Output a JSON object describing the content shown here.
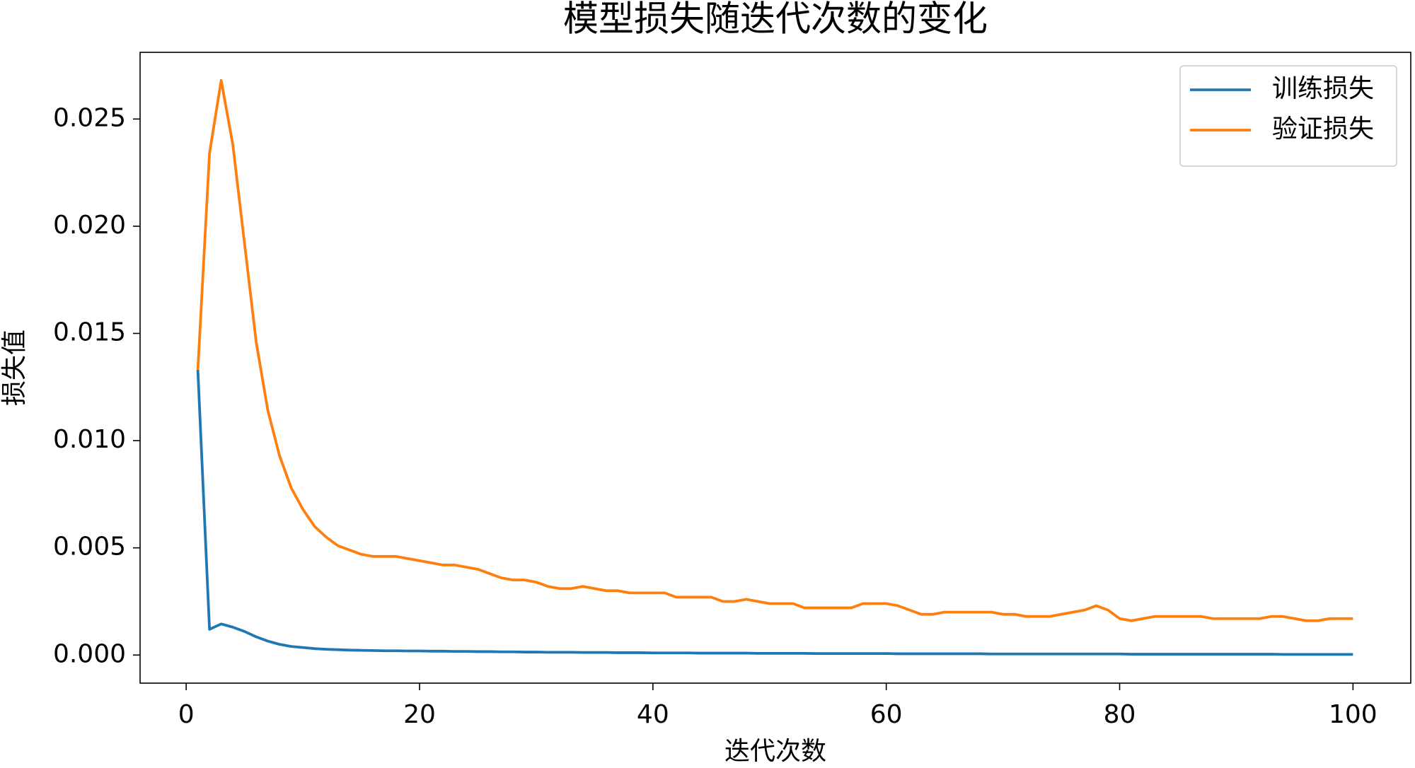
{
  "chart_data": {
    "type": "line",
    "title": "模型损失随迭代次数的变化",
    "x_label": "迭代次数",
    "y_label": "损失值",
    "x": [
      1,
      2,
      3,
      4,
      5,
      6,
      7,
      8,
      9,
      10,
      11,
      12,
      13,
      14,
      15,
      16,
      17,
      18,
      19,
      20,
      21,
      22,
      23,
      24,
      25,
      26,
      27,
      28,
      29,
      30,
      31,
      32,
      33,
      34,
      35,
      36,
      37,
      38,
      39,
      40,
      41,
      42,
      43,
      44,
      45,
      46,
      47,
      48,
      49,
      50,
      51,
      52,
      53,
      54,
      55,
      56,
      57,
      58,
      59,
      60,
      61,
      62,
      63,
      64,
      65,
      66,
      67,
      68,
      69,
      70,
      71,
      72,
      73,
      74,
      75,
      76,
      77,
      78,
      79,
      80,
      81,
      82,
      83,
      84,
      85,
      86,
      87,
      88,
      89,
      90,
      91,
      92,
      93,
      94,
      95,
      96,
      97,
      98,
      99,
      100
    ],
    "series": [
      {
        "name": "训练损失",
        "color": "#1f77b4",
        "values": [
          0.0133,
          0.0012,
          0.00145,
          0.0013,
          0.0011,
          0.00085,
          0.00065,
          0.0005,
          0.0004,
          0.00035,
          0.0003,
          0.00027,
          0.00025,
          0.00023,
          0.00022,
          0.00021,
          0.0002,
          0.0002,
          0.00019,
          0.00019,
          0.00018,
          0.00018,
          0.00017,
          0.00017,
          0.00016,
          0.00016,
          0.00015,
          0.00015,
          0.00014,
          0.00014,
          0.00013,
          0.00013,
          0.00013,
          0.00012,
          0.00012,
          0.00012,
          0.00011,
          0.00011,
          0.00011,
          0.0001,
          0.0001,
          0.0001,
          0.0001,
          9e-05,
          9e-05,
          9e-05,
          9e-05,
          9e-05,
          8e-05,
          8e-05,
          8e-05,
          8e-05,
          8e-05,
          7e-05,
          7e-05,
          7e-05,
          7e-05,
          7e-05,
          7e-05,
          7e-05,
          6e-05,
          6e-05,
          6e-05,
          6e-05,
          6e-05,
          6e-05,
          6e-05,
          6e-05,
          5e-05,
          5e-05,
          5e-05,
          5e-05,
          5e-05,
          5e-05,
          5e-05,
          5e-05,
          5e-05,
          5e-05,
          5e-05,
          5e-05,
          4e-05,
          4e-05,
          4e-05,
          4e-05,
          4e-05,
          4e-05,
          4e-05,
          4e-05,
          4e-05,
          4e-05,
          4e-05,
          4e-05,
          4e-05,
          3e-05,
          3e-05,
          3e-05,
          3e-05,
          3e-05,
          3e-05,
          3e-05
        ]
      },
      {
        "name": "验证损失",
        "color": "#ff7f0e",
        "values": [
          0.0133,
          0.0234,
          0.0268,
          0.0238,
          0.0192,
          0.0146,
          0.0114,
          0.0093,
          0.0078,
          0.0068,
          0.006,
          0.0055,
          0.0051,
          0.0049,
          0.0047,
          0.0046,
          0.0046,
          0.0046,
          0.0045,
          0.0044,
          0.0043,
          0.0042,
          0.0042,
          0.0041,
          0.004,
          0.0038,
          0.0036,
          0.0035,
          0.0035,
          0.0034,
          0.0032,
          0.0031,
          0.0031,
          0.0032,
          0.0031,
          0.003,
          0.003,
          0.0029,
          0.0029,
          0.0029,
          0.0029,
          0.0027,
          0.0027,
          0.0027,
          0.0027,
          0.0025,
          0.0025,
          0.0026,
          0.0025,
          0.0024,
          0.0024,
          0.0024,
          0.0022,
          0.0022,
          0.0022,
          0.0022,
          0.0022,
          0.0024,
          0.0024,
          0.0024,
          0.0023,
          0.0021,
          0.0019,
          0.0019,
          0.002,
          0.002,
          0.002,
          0.002,
          0.002,
          0.0019,
          0.0019,
          0.0018,
          0.0018,
          0.0018,
          0.0019,
          0.002,
          0.0021,
          0.0023,
          0.0021,
          0.0017,
          0.0016,
          0.0017,
          0.0018,
          0.0018,
          0.0018,
          0.0018,
          0.0018,
          0.0017,
          0.0017,
          0.0017,
          0.0017,
          0.0017,
          0.0018,
          0.0018,
          0.0017,
          0.0016,
          0.0016,
          0.0017,
          0.0017,
          0.0017
        ]
      }
    ],
    "xlim": [
      -3.95,
      104.95
    ],
    "xticks": [
      0,
      20,
      40,
      60,
      80,
      100
    ],
    "ylim": [
      -0.00131,
      0.02811
    ],
    "yticks": [
      {
        "value": 0,
        "label": "0.000"
      },
      {
        "value": 0.005,
        "label": "0.005"
      },
      {
        "value": 0.01,
        "label": "0.010"
      },
      {
        "value": 0.015,
        "label": "0.015"
      },
      {
        "value": 0.02,
        "label": "0.020"
      },
      {
        "value": 0.025,
        "label": "0.025"
      }
    ],
    "grid": false,
    "legend": "upper right"
  }
}
